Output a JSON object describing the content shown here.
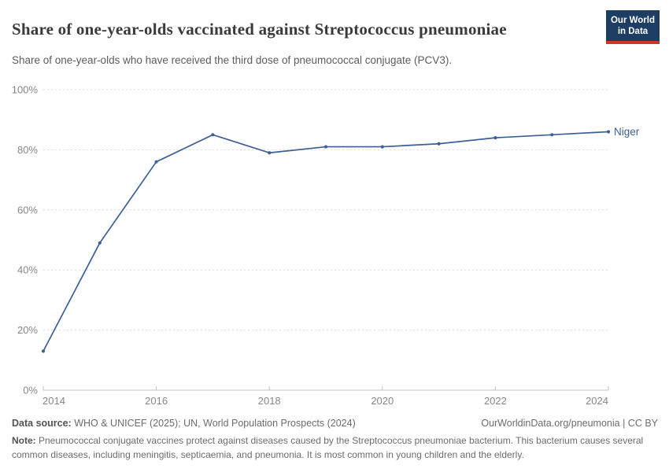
{
  "header": {
    "title": "Share of one-year-olds vaccinated against Streptococcus pneumoniae",
    "subtitle": "Share of one-year-olds who have received the third dose of pneumococcal conjugate (PCV3).",
    "logo": {
      "line1": "Our World",
      "line2": "in Data"
    }
  },
  "chart_data": {
    "type": "line",
    "title": "Share of one-year-olds vaccinated against Streptococcus pneumoniae",
    "x": [
      2014,
      2015,
      2016,
      2017,
      2018,
      2019,
      2020,
      2021,
      2022,
      2023,
      2024
    ],
    "series": [
      {
        "name": "Niger",
        "values": [
          13,
          49,
          76,
          85,
          79,
          81,
          81,
          82,
          84,
          85,
          86
        ],
        "color": "#3e5f95"
      }
    ],
    "xlim": [
      2014,
      2024
    ],
    "ylim": [
      0,
      100
    ],
    "xticks": [
      2014,
      2016,
      2018,
      2020,
      2022,
      2024
    ],
    "yticks": [
      0,
      20,
      40,
      60,
      80,
      100
    ],
    "ytick_suffix": "%",
    "grid": "horizontal-dashed",
    "legend_position": "end-of-line-label"
  },
  "footer": {
    "datasource_label": "Data source:",
    "datasource_text": " WHO & UNICEF (2025); UN, World Population Prospects (2024)",
    "attribution": "OurWorldinData.org/pneumonia | CC BY",
    "note_label": "Note:",
    "note_text": " Pneumococcal conjugate vaccines protect against diseases caused by the Streptococcus pneumoniae bacterium. This bacterium causes several common diseases, including meningitis, septicaemia, and pneumonia. It is most common in young children and the elderly."
  },
  "colors": {
    "line": "#3e5f95",
    "grid": "#dcdcdc",
    "axis_line": "#c2c2c2",
    "axis_text": "#878787",
    "logo_navy": "#1d3d63",
    "logo_red": "#d0342c"
  }
}
